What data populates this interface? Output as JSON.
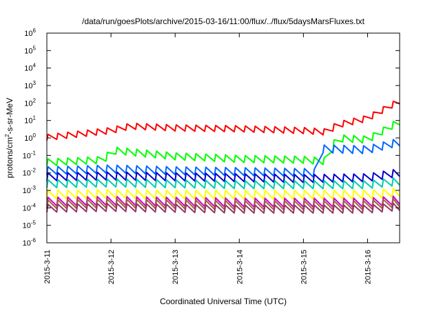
{
  "chart_data": {
    "type": "line",
    "title": "/data/run/goesPlots/archive/2015-03-16/11:00/flux/../flux/5daysMarsFluxes.txt",
    "xlabel": "Coordinated Universal Time (UTC)",
    "ylabel": "protons/cm²-s-sr-MeV",
    "ylabel_parts": {
      "before": "protons/cm",
      "sup": "2",
      "after": "-s-sr-MeV"
    },
    "y_scale": "log",
    "ylim_exp": [
      -6,
      6
    ],
    "y_tick_exponents": [
      -6,
      -5,
      -4,
      -3,
      -2,
      -1,
      0,
      1,
      2,
      3,
      4,
      5,
      6
    ],
    "y_tick_base": "10",
    "xlim": [
      "2015-03-11",
      "2015-03-16 12:00"
    ],
    "x_ticks": [
      "2015-3-11",
      "2015-3-12",
      "2015-3-13",
      "2015-3-14",
      "2015-3-15",
      "2015-3-16"
    ],
    "grid": false,
    "legend": "none",
    "sawtooth_period_hours": 3.69,
    "series": [
      {
        "color": "#ff0000",
        "log10_baseline": [
          [
            0,
            -0.15
          ],
          [
            1,
            0.25
          ],
          [
            1.3,
            0.5
          ],
          [
            2,
            0.4
          ],
          [
            3,
            0.35
          ],
          [
            4,
            0.25
          ],
          [
            4.4,
            0.15
          ],
          [
            4.5,
            0.55
          ],
          [
            5,
            0.95
          ],
          [
            5.5,
            1.95
          ]
        ],
        "amp_dex": 0.35
      },
      {
        "color": "#00ff00",
        "log10_baseline": [
          [
            0,
            -1.6
          ],
          [
            0.9,
            -1.45
          ],
          [
            1.0,
            -0.9
          ],
          [
            2.0,
            -1.25
          ],
          [
            3.0,
            -1.4
          ],
          [
            4.0,
            -1.45
          ],
          [
            4.4,
            -1.55
          ],
          [
            4.5,
            -0.2
          ],
          [
            5.0,
            -0.3
          ],
          [
            5.5,
            0.75
          ]
        ],
        "amp_dex": 0.4
      },
      {
        "color": "#0066ff",
        "log10_baseline": [
          [
            0,
            -2.1
          ],
          [
            1,
            -2.0
          ],
          [
            2,
            -2.1
          ],
          [
            3,
            -2.15
          ],
          [
            4,
            -2.2
          ],
          [
            4.25,
            -2.25
          ],
          [
            4.3,
            -0.85
          ],
          [
            5,
            -0.9
          ],
          [
            5.5,
            -0.45
          ]
        ],
        "amp_dex": 0.45
      },
      {
        "color": "#0000cc",
        "log10_baseline": [
          [
            0,
            -2.45
          ],
          [
            1,
            -2.4
          ],
          [
            2,
            -2.45
          ],
          [
            3,
            -2.5
          ],
          [
            4,
            -2.55
          ],
          [
            5,
            -2.5
          ],
          [
            5.5,
            -2.2
          ]
        ],
        "amp_dex": 0.45
      },
      {
        "color": "#00ccaa",
        "log10_baseline": [
          [
            0,
            -2.85
          ],
          [
            1,
            -2.8
          ],
          [
            2,
            -2.85
          ],
          [
            3,
            -2.9
          ],
          [
            4,
            -2.9
          ],
          [
            5,
            -2.9
          ],
          [
            5.5,
            -2.7
          ]
        ],
        "amp_dex": 0.45
      },
      {
        "color": "#ffff00",
        "log10_baseline": [
          [
            0,
            -3.5
          ],
          [
            1,
            -3.45
          ],
          [
            2,
            -3.5
          ],
          [
            3,
            -3.5
          ],
          [
            4,
            -3.5
          ],
          [
            5,
            -3.5
          ],
          [
            5.5,
            -3.35
          ]
        ],
        "amp_dex": 0.5
      },
      {
        "color": "#cc00cc",
        "log10_baseline": [
          [
            0,
            -3.9
          ],
          [
            1,
            -3.85
          ],
          [
            2,
            -3.9
          ],
          [
            3,
            -3.95
          ],
          [
            4,
            -3.95
          ],
          [
            5,
            -3.95
          ],
          [
            5.5,
            -3.8
          ]
        ],
        "amp_dex": 0.5
      },
      {
        "color": "#996633",
        "log10_baseline": [
          [
            0,
            -4.05
          ],
          [
            1,
            -4.0
          ],
          [
            2,
            -4.05
          ],
          [
            3,
            -4.1
          ],
          [
            4,
            -4.1
          ],
          [
            5,
            -4.1
          ],
          [
            5.5,
            -3.95
          ]
        ],
        "amp_dex": 0.5
      },
      {
        "color": "#993366",
        "log10_baseline": [
          [
            0,
            -4.25
          ],
          [
            1,
            -4.2
          ],
          [
            2,
            -4.25
          ],
          [
            3,
            -4.3
          ],
          [
            4,
            -4.3
          ],
          [
            5,
            -4.3
          ],
          [
            5.5,
            -4.15
          ]
        ],
        "amp_dex": 0.45
      }
    ]
  }
}
